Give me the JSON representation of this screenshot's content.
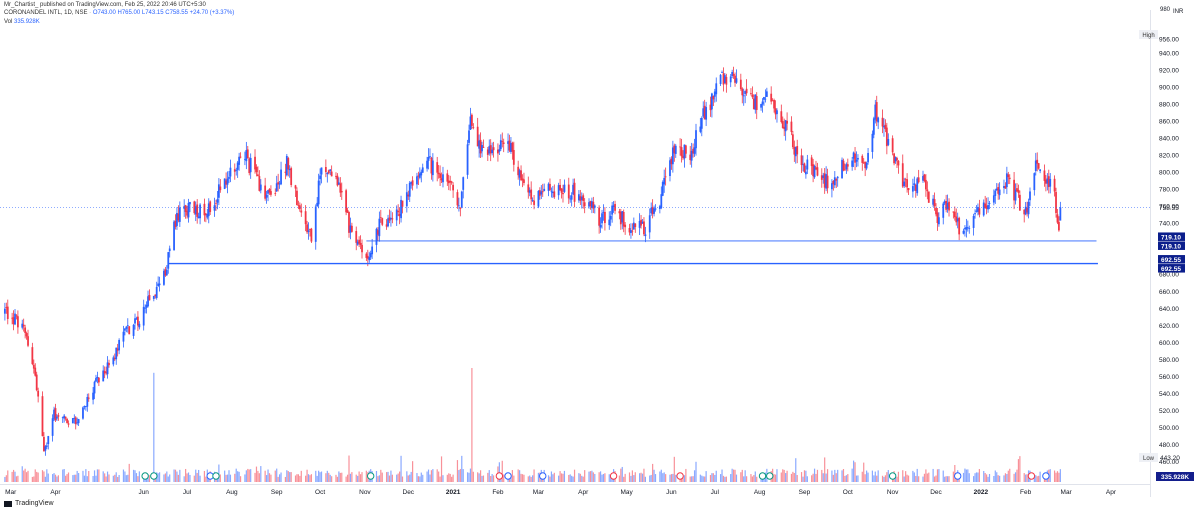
{
  "header": {
    "publish": "Mr_Chartist_ published on TradingView.com, Feb 25, 2022 20:46 UTC+5:30",
    "symbol": "CORONANDEL INTL, 1D, NSE",
    "ohlc": {
      "o": "O743.00",
      "h": "H765.00",
      "l": "L743.15",
      "c": "C758.55",
      "chg": "+24.70 (+3.37%)"
    },
    "vol_label": "Vol",
    "vol_value": "335.928K"
  },
  "footer": {
    "brand": "TradingView"
  },
  "colors": {
    "up": "#2962ff",
    "down": "#f23645",
    "line": "#2962ff",
    "grid_text": "#131722"
  },
  "chart_data": {
    "type": "candlestick",
    "currency": "INR",
    "price_axis": {
      "ticks": [
        460.0,
        480.0,
        500.0,
        520.0,
        540.0,
        560.0,
        580.0,
        600.0,
        620.0,
        640.0,
        660.0,
        680.0,
        740.0,
        760.0,
        780.0,
        800.0,
        820.0,
        840.0,
        860.0,
        880.0,
        900.0,
        920.0,
        940.0
      ],
      "ylim": [
        436,
        988
      ],
      "top_partial": "980",
      "top_label": "956.00"
    },
    "x_axis": {
      "labels": [
        "Mar",
        "Apr",
        "Jun",
        "Jul",
        "Aug",
        "Sep",
        "Oct",
        "Nov",
        "Dec",
        "2021",
        "Feb",
        "Mar",
        "Apr",
        "May",
        "Jun",
        "Jul",
        "Aug",
        "Sep",
        "Oct",
        "Nov",
        "Dec",
        "2022",
        "Feb",
        "Mar",
        "Apr"
      ],
      "label_dates": [
        "2020-03-01",
        "2020-04-01",
        "2020-06-01",
        "2020-07-01",
        "2020-08-01",
        "2020-09-01",
        "2020-10-01",
        "2020-11-01",
        "2020-12-01",
        "2021-01-01",
        "2021-02-01",
        "2021-03-01",
        "2021-04-01",
        "2021-05-01",
        "2021-06-01",
        "2021-07-01",
        "2021-08-01",
        "2021-09-01",
        "2021-10-01",
        "2021-11-01",
        "2021-12-01",
        "2022-01-01",
        "2022-02-01",
        "2022-03-01",
        "2022-04-01"
      ],
      "xlim": [
        "2020-02-24",
        "2022-04-28"
      ]
    },
    "anchors": [
      [
        "2020-02-26",
        636
      ],
      [
        "2020-03-09",
        620
      ],
      [
        "2020-03-18",
        560
      ],
      [
        "2020-03-24",
        470
      ],
      [
        "2020-03-31",
        515
      ],
      [
        "2020-04-15",
        505
      ],
      [
        "2020-04-28",
        550
      ],
      [
        "2020-05-12",
        585
      ],
      [
        "2020-05-20",
        615
      ],
      [
        "2020-05-28",
        625
      ],
      [
        "2020-06-03",
        650
      ],
      [
        "2020-06-10",
        660
      ],
      [
        "2020-06-17",
        690
      ],
      [
        "2020-06-23",
        745
      ],
      [
        "2020-07-01",
        755
      ],
      [
        "2020-07-15",
        758
      ],
      [
        "2020-07-29",
        790
      ],
      [
        "2020-08-10",
        820
      ],
      [
        "2020-08-20",
        785
      ],
      [
        "2020-08-28",
        770
      ],
      [
        "2020-09-08",
        810
      ],
      [
        "2020-09-18",
        745
      ],
      [
        "2020-09-25",
        725
      ],
      [
        "2020-10-02",
        810
      ],
      [
        "2020-10-12",
        795
      ],
      [
        "2020-10-23",
        725
      ],
      [
        "2020-11-02",
        700
      ],
      [
        "2020-11-10",
        735
      ],
      [
        "2020-11-18",
        745
      ],
      [
        "2020-11-27",
        760
      ],
      [
        "2020-12-04",
        790
      ],
      [
        "2020-12-14",
        810
      ],
      [
        "2020-12-24",
        800
      ],
      [
        "2021-01-06",
        760
      ],
      [
        "2021-01-13",
        855
      ],
      [
        "2021-01-20",
        825
      ],
      [
        "2021-02-02",
        825
      ],
      [
        "2021-02-08",
        840
      ],
      [
        "2021-02-15",
        800
      ],
      [
        "2021-02-24",
        765
      ],
      [
        "2021-03-08",
        780
      ],
      [
        "2021-03-20",
        780
      ],
      [
        "2021-04-01",
        770
      ],
      [
        "2021-04-12",
        745
      ],
      [
        "2021-04-22",
        755
      ],
      [
        "2021-05-04",
        735
      ],
      [
        "2021-05-14",
        735
      ],
      [
        "2021-05-24",
        770
      ],
      [
        "2021-06-02",
        825
      ],
      [
        "2021-06-14",
        820
      ],
      [
        "2021-06-24",
        870
      ],
      [
        "2021-07-05",
        905
      ],
      [
        "2021-07-14",
        915
      ],
      [
        "2021-07-27",
        880
      ],
      [
        "2021-08-06",
        895
      ],
      [
        "2021-08-17",
        860
      ],
      [
        "2021-08-30",
        810
      ],
      [
        "2021-09-08",
        800
      ],
      [
        "2021-09-20",
        785
      ],
      [
        "2021-10-01",
        815
      ],
      [
        "2021-10-13",
        810
      ],
      [
        "2021-10-20",
        870
      ],
      [
        "2021-10-28",
        840
      ],
      [
        "2021-11-08",
        790
      ],
      [
        "2021-11-22",
        785
      ],
      [
        "2021-12-02",
        750
      ],
      [
        "2021-12-10",
        760
      ],
      [
        "2021-12-20",
        725
      ],
      [
        "2021-12-30",
        750
      ],
      [
        "2022-01-10",
        780
      ],
      [
        "2022-01-20",
        790
      ],
      [
        "2022-02-01",
        750
      ],
      [
        "2022-02-08",
        815
      ],
      [
        "2022-02-15",
        790
      ],
      [
        "2022-02-21",
        775
      ],
      [
        "2022-02-24",
        734
      ],
      [
        "2022-02-25",
        758
      ]
    ],
    "last_candle": {
      "o": 743.0,
      "h": 765.0,
      "l": 743.15,
      "c": 758.55
    },
    "hlines": [
      {
        "start": "2020-11-02",
        "end": "2022-03-22",
        "price": 719.1,
        "label": "719.10"
      },
      {
        "start": "2020-06-18",
        "end": "2022-03-23",
        "price": 692.55,
        "label": "692.55"
      }
    ],
    "price_line": {
      "value": 758.55,
      "label": "758.55"
    },
    "volume": {
      "max_ratio": 0.82,
      "last_label": "335.928K"
    },
    "high_label": {
      "text": "High",
      "value": "956.00"
    },
    "low_label": {
      "text": "Low",
      "value": "443.20"
    },
    "event_markers": [
      [
        "2020-06-02",
        "green"
      ],
      [
        "2020-06-08",
        "green"
      ],
      [
        "2020-07-17",
        "blue"
      ],
      [
        "2020-07-21",
        "green"
      ],
      [
        "2020-11-05",
        "green"
      ],
      [
        "2021-02-02",
        "red"
      ],
      [
        "2021-02-08",
        "blue"
      ],
      [
        "2021-03-04",
        "blue"
      ],
      [
        "2021-04-22",
        "red"
      ],
      [
        "2021-06-07",
        "red"
      ],
      [
        "2021-08-03",
        "green"
      ],
      [
        "2021-08-08",
        "green"
      ],
      [
        "2021-11-01",
        "green"
      ],
      [
        "2021-12-16",
        "blue"
      ],
      [
        "2022-02-05",
        "red"
      ],
      [
        "2022-02-15",
        "blue"
      ]
    ]
  }
}
